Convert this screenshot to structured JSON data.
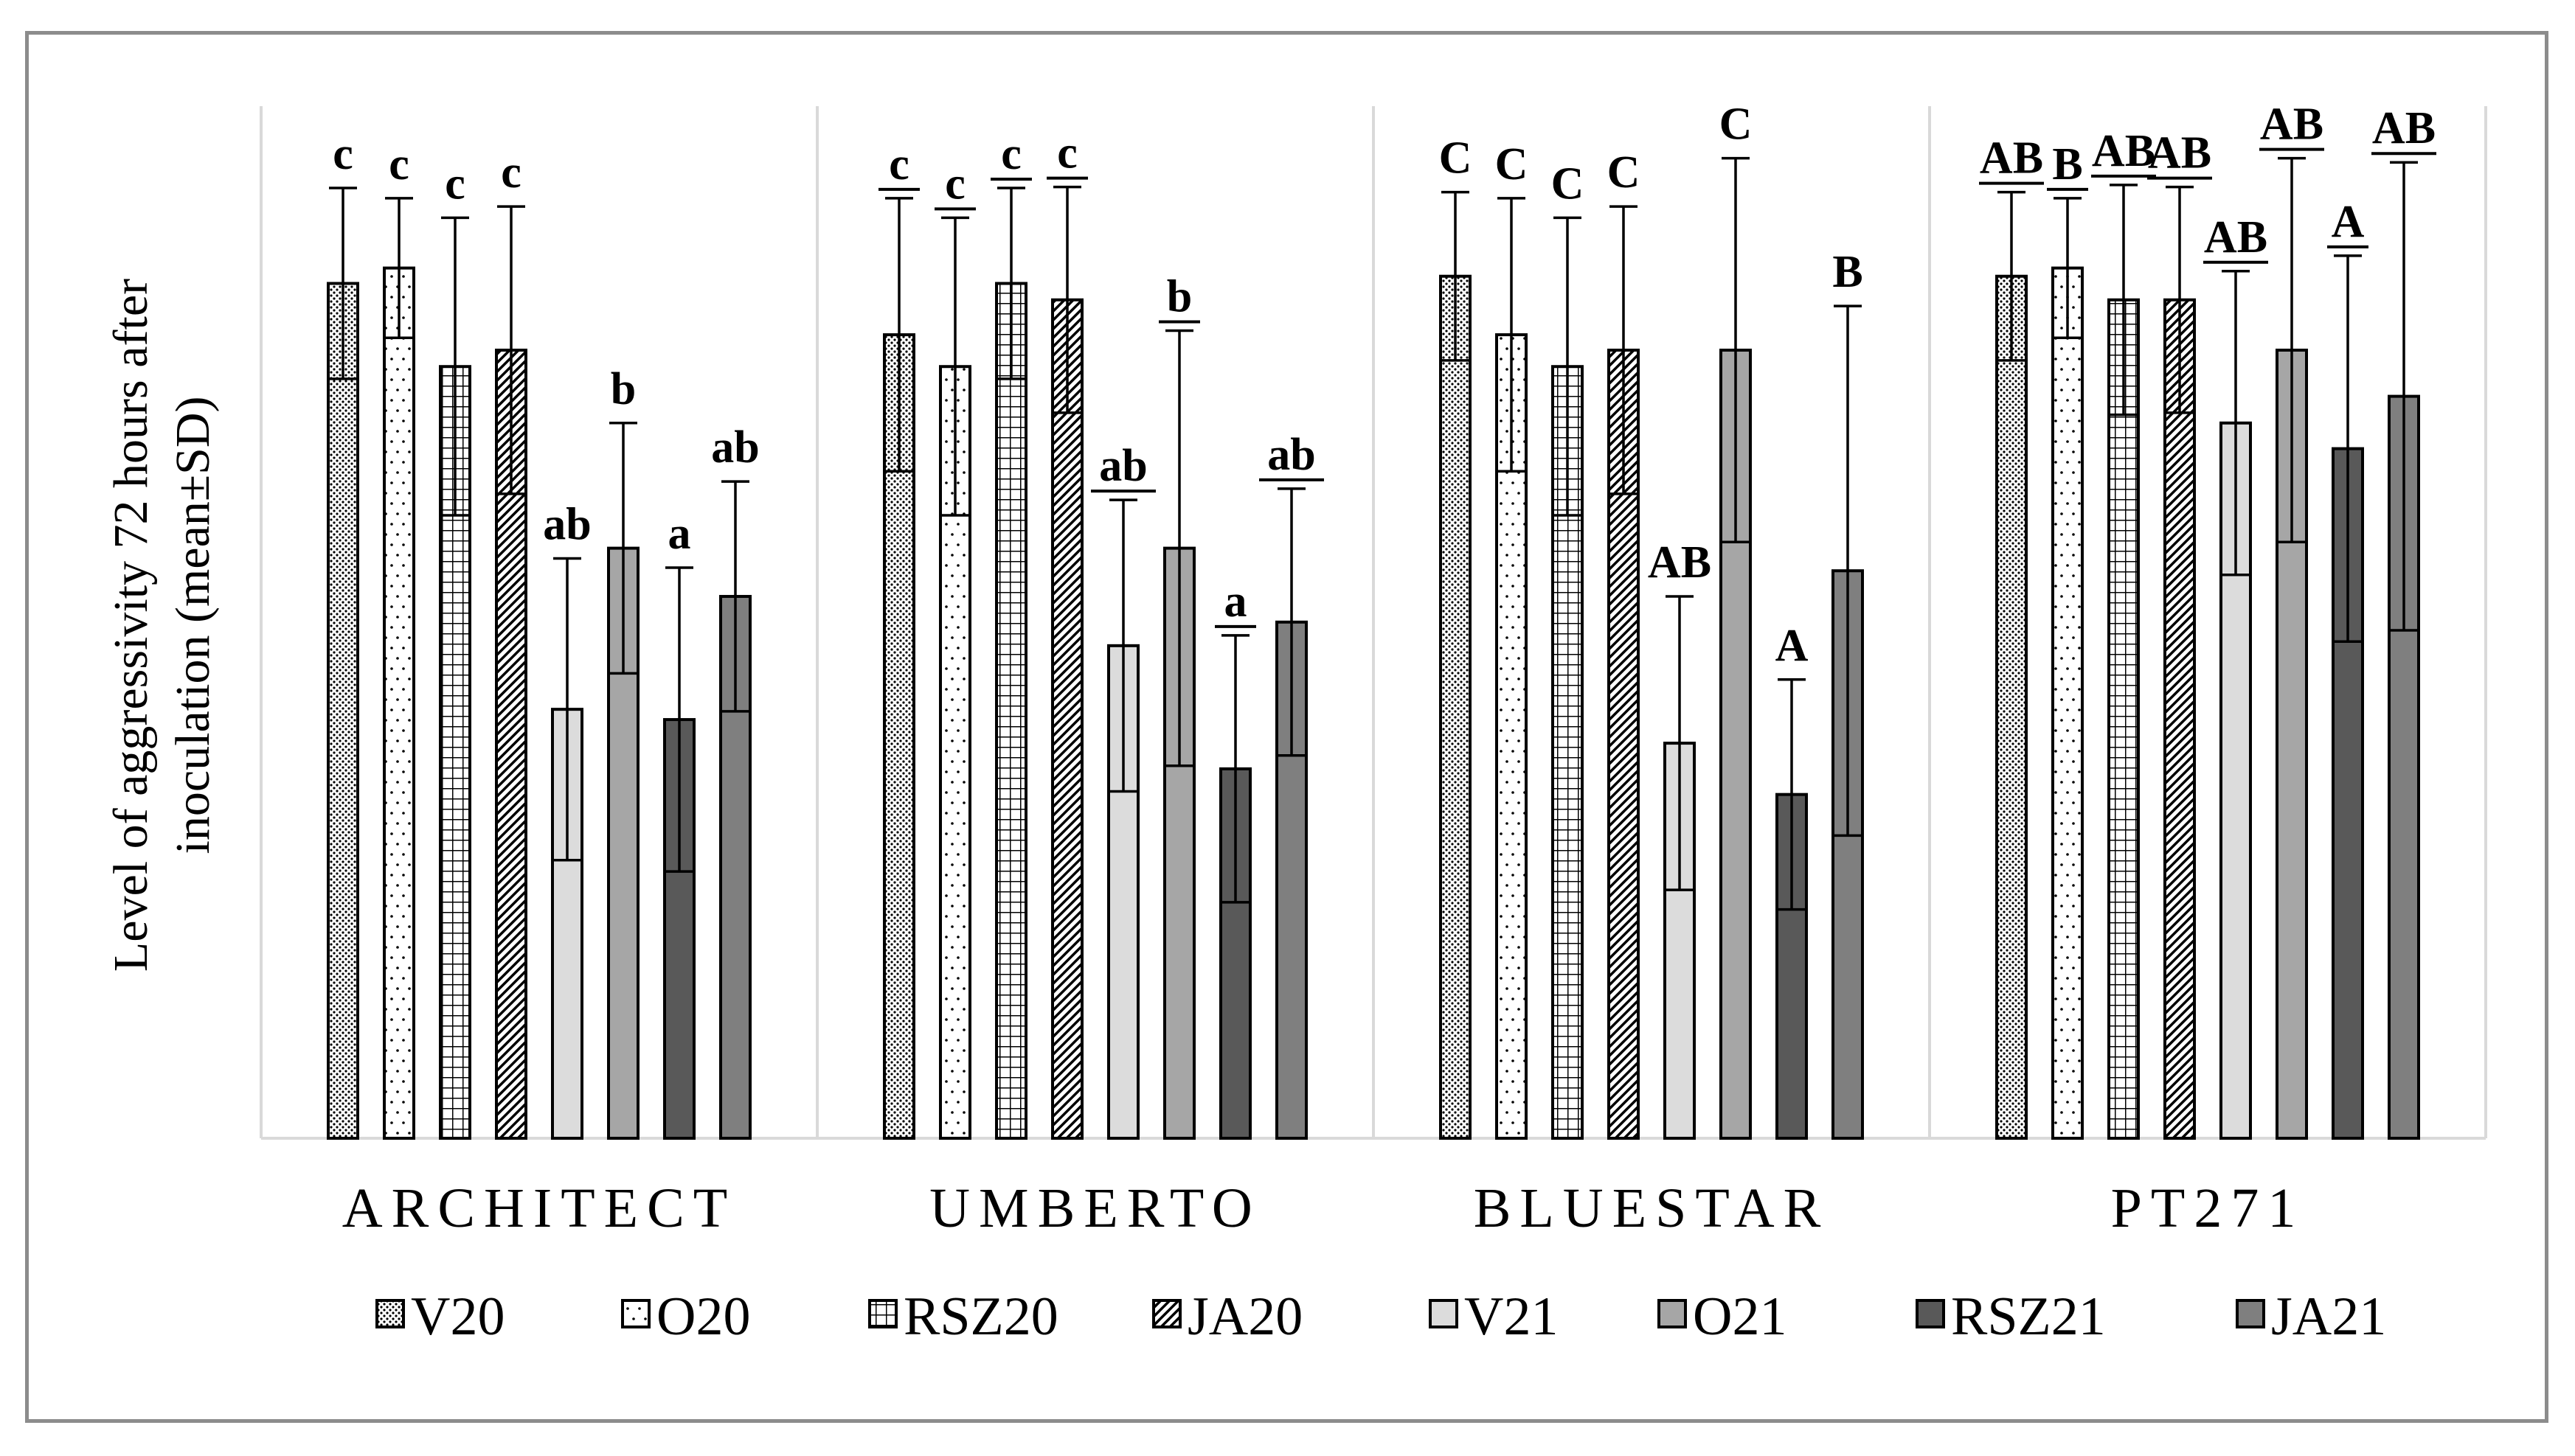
{
  "chart_data": {
    "type": "bar",
    "title": "",
    "xlabel": "",
    "ylabel": "Level of aggressivity 72 hours after inoculation (mean±SD)",
    "ylabel_lines": [
      "Level of aggressivity 72 hours after",
      "inoculation (mean±SD)"
    ],
    "ylim": [
      0,
      1
    ],
    "grid": false,
    "legend_position": "bottom",
    "categories": [
      "ARCHITECT",
      "UMBERTO",
      "BLUESTAR",
      "PT271"
    ],
    "series": [
      {
        "name": "V20",
        "pattern": "dots",
        "color": "#ffffff",
        "values": [
          0.833,
          0.783,
          0.84,
          0.84
        ],
        "sd": [
          0.093,
          0.133,
          0.082,
          0.082
        ],
        "labels": [
          "c",
          "c",
          "C",
          "AB"
        ],
        "underlined": [
          false,
          true,
          false,
          true
        ]
      },
      {
        "name": "O20",
        "pattern": "sparse-dots",
        "color": "#ffffff",
        "values": [
          0.848,
          0.752,
          0.783,
          0.848
        ],
        "sd": [
          0.068,
          0.145,
          0.133,
          0.068
        ],
        "labels": [
          "c",
          "c",
          "C",
          "B"
        ],
        "underlined": [
          false,
          true,
          false,
          true
        ]
      },
      {
        "name": "RSZ20",
        "pattern": "grid",
        "color": "#ffffff",
        "values": [
          0.752,
          0.833,
          0.752,
          0.817
        ],
        "sd": [
          0.145,
          0.093,
          0.145,
          0.112
        ],
        "labels": [
          "c",
          "c",
          "C",
          "AB"
        ],
        "underlined": [
          false,
          true,
          false,
          true
        ]
      },
      {
        "name": "JA20",
        "pattern": "diagonal",
        "color": "#ffffff",
        "values": [
          0.768,
          0.817,
          0.768,
          0.817
        ],
        "sd": [
          0.14,
          0.11,
          0.14,
          0.11
        ],
        "labels": [
          "c",
          "c",
          "C",
          "AB"
        ],
        "underlined": [
          false,
          true,
          false,
          true
        ]
      },
      {
        "name": "V21",
        "pattern": "solid",
        "color": "#dcdcdc",
        "values": [
          0.418,
          0.48,
          0.385,
          0.697
        ],
        "sd": [
          0.147,
          0.142,
          0.143,
          0.148
        ],
        "labels": [
          "ab",
          "ab",
          "AB",
          "AB"
        ],
        "underlined": [
          false,
          true,
          false,
          true
        ]
      },
      {
        "name": "O21",
        "pattern": "solid",
        "color": "#a6a6a6",
        "values": [
          0.575,
          0.575,
          0.768,
          0.768
        ],
        "sd": [
          0.122,
          0.212,
          0.187,
          0.187
        ],
        "labels": [
          "b",
          "b",
          "C",
          "AB"
        ],
        "underlined": [
          false,
          true,
          false,
          true
        ]
      },
      {
        "name": "RSZ21",
        "pattern": "solid",
        "color": "#595959",
        "values": [
          0.408,
          0.36,
          0.335,
          0.672
        ],
        "sd": [
          0.148,
          0.13,
          0.112,
          0.188
        ],
        "labels": [
          "a",
          "a",
          "A",
          "A"
        ],
        "underlined": [
          false,
          true,
          false,
          true
        ]
      },
      {
        "name": "JA21",
        "pattern": "solid",
        "color": "#7f7f7f",
        "values": [
          0.528,
          0.503,
          0.553,
          0.723
        ],
        "sd": [
          0.112,
          0.13,
          0.258,
          0.228
        ],
        "labels": [
          "ab",
          "ab",
          "B",
          "AB"
        ],
        "underlined": [
          false,
          true,
          false,
          true
        ]
      }
    ]
  }
}
